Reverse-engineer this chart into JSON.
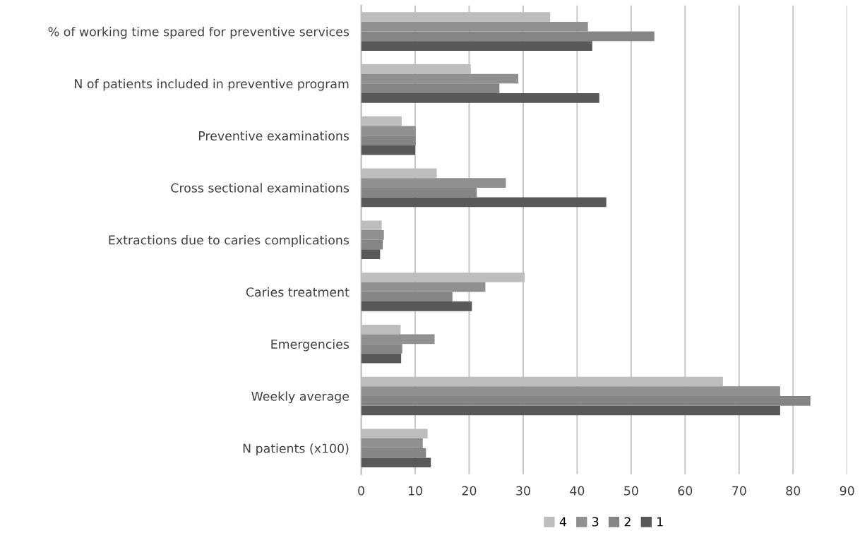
{
  "chart_data": {
    "type": "bar",
    "orientation": "horizontal",
    "categories": [
      "% of working time spared for preventive services",
      "N of patients included in preventive program",
      "Preventive examinations",
      "Cross sectional examinations",
      "Extractions due to caries complications",
      "Caries treatment",
      "Emergencies",
      "Weekly average",
      "N patients (x100)"
    ],
    "series": [
      {
        "name": "4",
        "color": "#bdbdbd",
        "values": [
          35,
          20.3,
          7.5,
          14,
          3.8,
          30.3,
          7.3,
          67,
          12.3
        ]
      },
      {
        "name": "3",
        "color": "#909090",
        "values": [
          42,
          29.1,
          10.1,
          26.8,
          4.2,
          23,
          13.6,
          77.6,
          11.4
        ]
      },
      {
        "name": "2",
        "color": "#858585",
        "values": [
          54.3,
          25.6,
          10.1,
          21.4,
          4.0,
          16.9,
          7.6,
          83.2,
          12
        ]
      },
      {
        "name": "1",
        "color": "#595959",
        "values": [
          42.8,
          44.1,
          10,
          45.4,
          3.5,
          20.5,
          7.4,
          77.6,
          12.9
        ]
      }
    ],
    "xlim": [
      0,
      90
    ],
    "xticks": [
      0,
      10,
      20,
      30,
      40,
      50,
      60,
      70,
      80,
      90
    ],
    "grid": "x",
    "legend": "bottom"
  }
}
